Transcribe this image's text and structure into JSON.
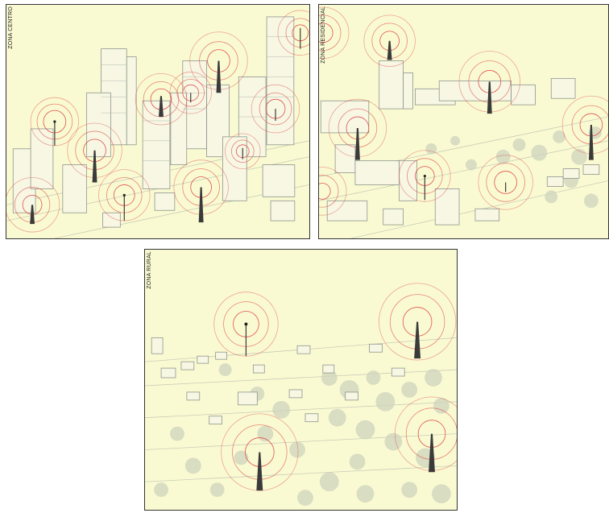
{
  "panels": {
    "centro": {
      "label": "ZONA CENTRO"
    },
    "residencial": {
      "label": "ZONA RESIDENCIAL"
    },
    "rural": {
      "label": "ZONA RURAL"
    }
  },
  "colors": {
    "background": "#fafad2",
    "building_line": "#9aa094",
    "tree": "#c9cfb8",
    "signal": "#e0524e",
    "tower": "#3a3a3a"
  },
  "icons": [
    "antenna-tower-icon",
    "signal-rings-icon",
    "building-icon",
    "tree-icon"
  ]
}
